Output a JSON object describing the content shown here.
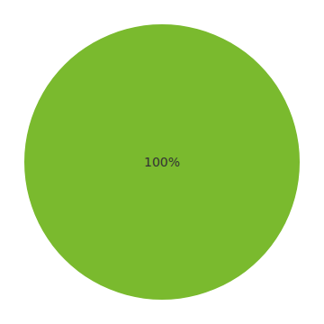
{
  "chart_data": {
    "type": "pie",
    "values": [
      100
    ],
    "colors": [
      "#7aba2e"
    ],
    "annotations": [
      "100%"
    ]
  }
}
